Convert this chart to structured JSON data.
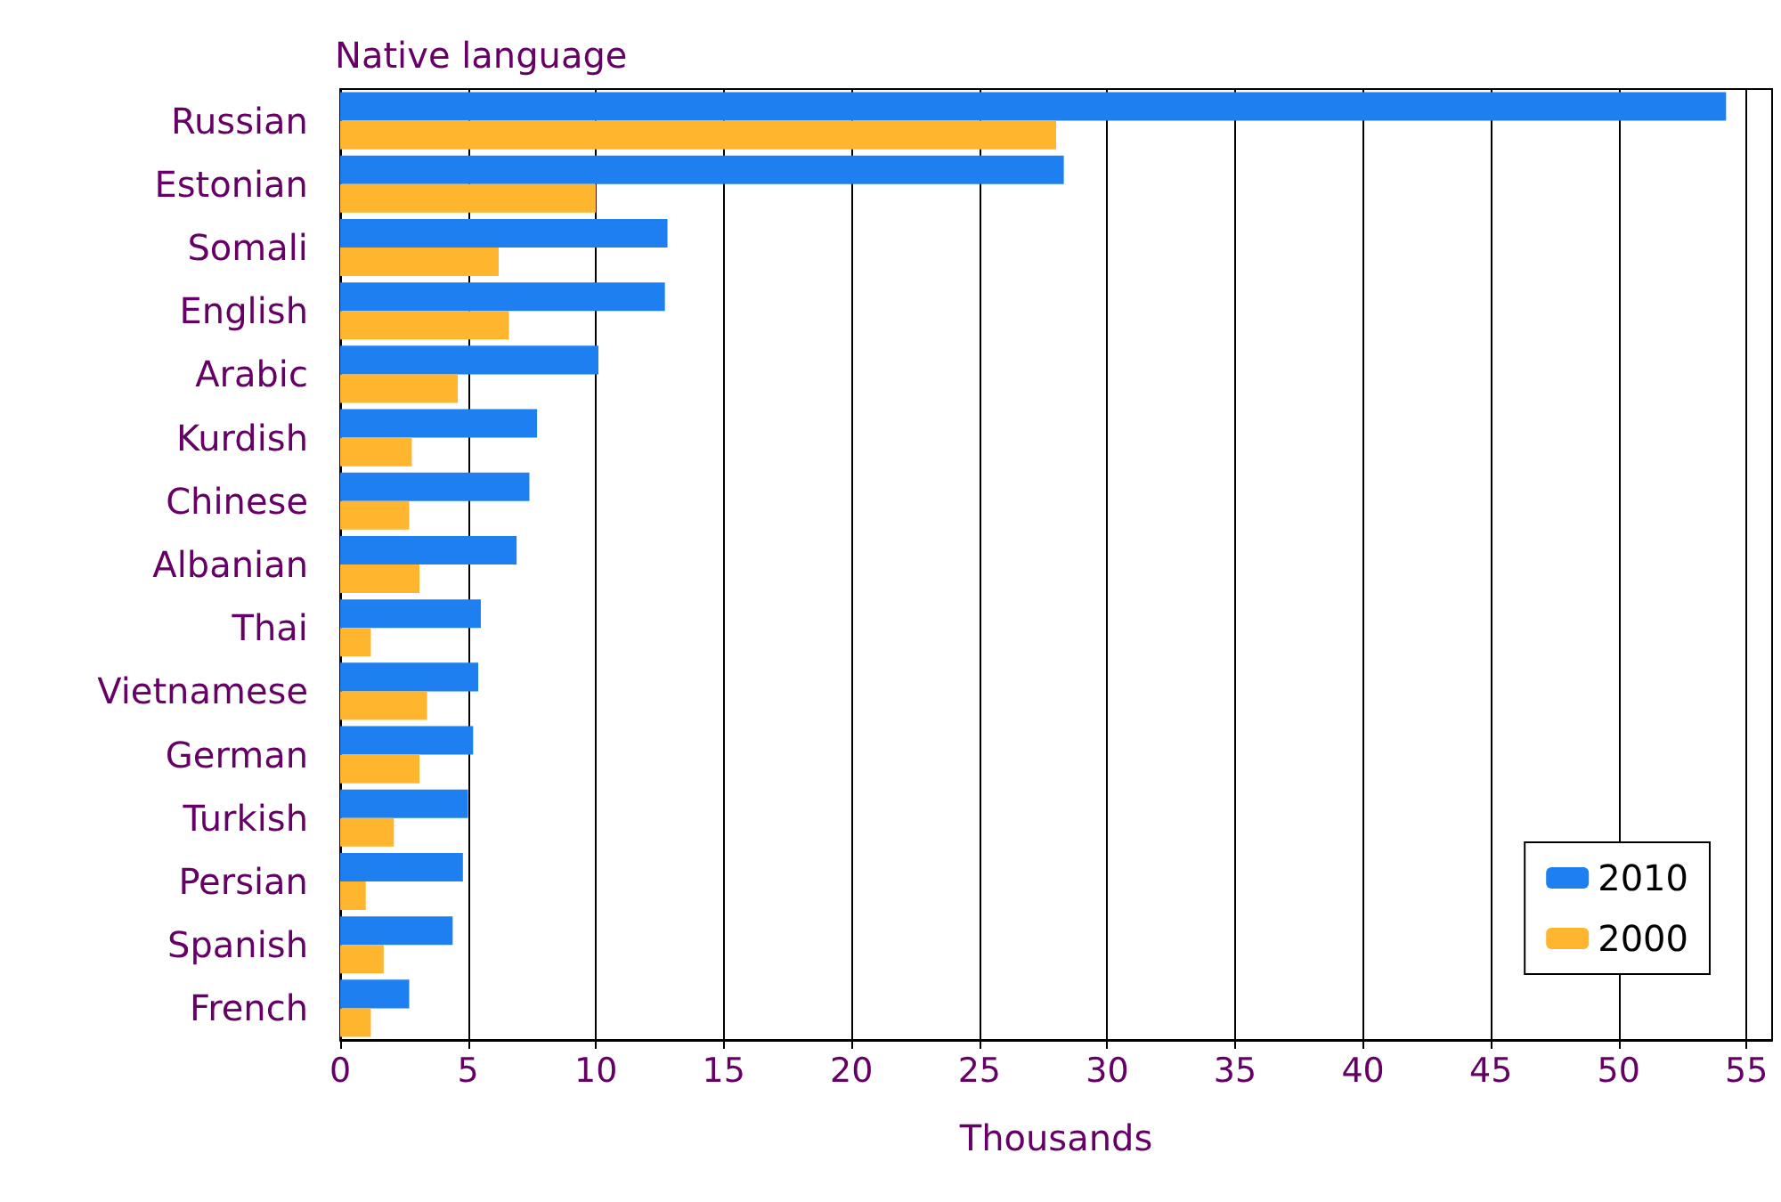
{
  "chart_data": {
    "type": "bar",
    "orientation": "horizontal",
    "title": "Native language",
    "xlabel": "Thousands",
    "categories": [
      "Russian",
      "Estonian",
      "Somali",
      "English",
      "Arabic",
      "Kurdish",
      "Chinese",
      "Albanian",
      "Thai",
      "Vietnamese",
      "German",
      "Turkish",
      "Persian",
      "Spanish",
      "French"
    ],
    "series": [
      {
        "name": "2010",
        "color": "#1e7ff0",
        "values": [
          54.2,
          28.3,
          12.8,
          12.7,
          10.1,
          7.7,
          7.4,
          6.9,
          5.5,
          5.4,
          5.2,
          5.0,
          4.8,
          4.4,
          2.7
        ]
      },
      {
        "name": "2000",
        "color": "#ffb52e",
        "values": [
          28.0,
          10.0,
          6.2,
          6.6,
          4.6,
          2.8,
          2.7,
          3.1,
          1.2,
          3.4,
          3.1,
          2.1,
          1.0,
          1.7,
          1.2
        ]
      }
    ],
    "xlim": [
      0,
      56
    ],
    "xticks": [
      0,
      5,
      10,
      15,
      20,
      25,
      30,
      35,
      40,
      45,
      50,
      55
    ],
    "grid": "x",
    "legend": "bottom right"
  }
}
